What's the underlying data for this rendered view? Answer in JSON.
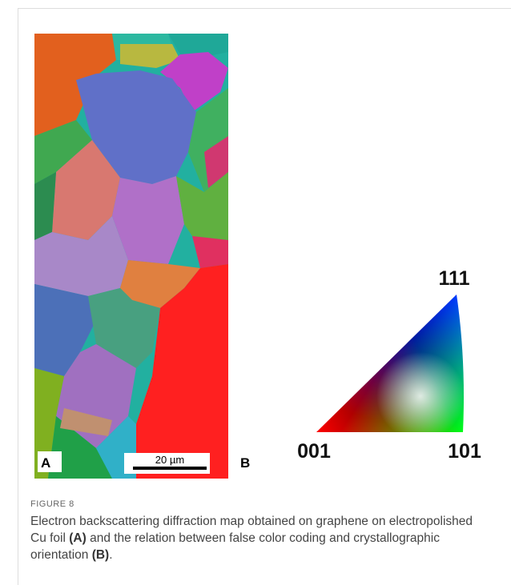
{
  "figure": {
    "panel_a_label": "A",
    "scale_bar": "20 µm",
    "panel_b_label": "B",
    "triangle": {
      "top": "111",
      "left": "001",
      "right": "101"
    },
    "caption_label": "FIGURE 8",
    "caption": [
      "Electron backscattering diffraction map obtained on graphene on electropolished Cu foil ",
      "(A)",
      " and the relation between false color coding and crystallographic orientation ",
      "(B)",
      "."
    ]
  }
}
